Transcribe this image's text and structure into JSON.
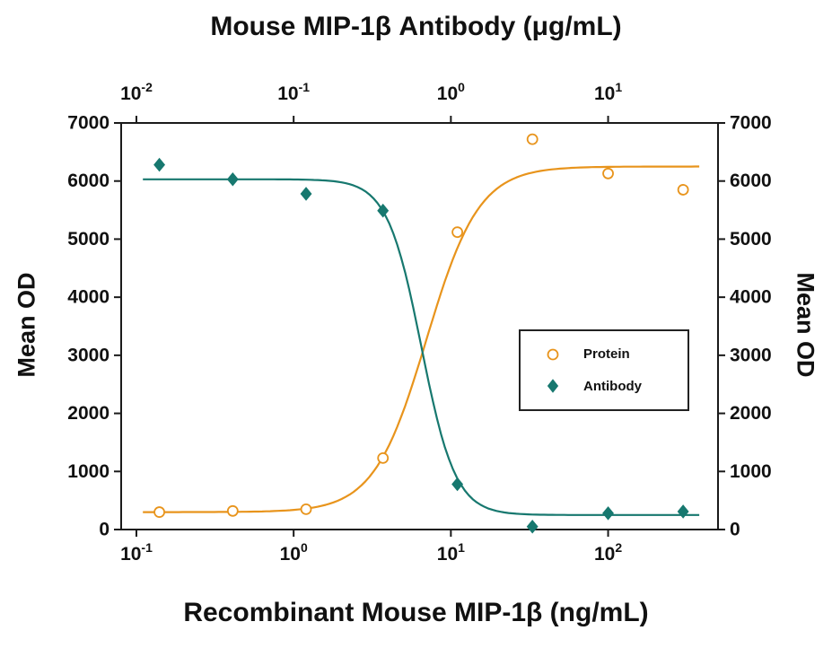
{
  "chart_data": {
    "type": "scatter",
    "title": "Mouse MIP-1β Antibody (μg/mL)",
    "x_axis_top": {
      "label": "Mouse MIP-1β Antibody (μg/mL)",
      "unit": "μg/mL",
      "scale": "log",
      "min": 0.008,
      "max": 50,
      "ticks": [
        {
          "base": "10",
          "exp": "-2",
          "value": 0.01
        },
        {
          "base": "10",
          "exp": "-1",
          "value": 0.1
        },
        {
          "base": "10",
          "exp": "0",
          "value": 1
        },
        {
          "base": "10",
          "exp": "1",
          "value": 10
        }
      ]
    },
    "x_axis_bottom": {
      "label": "Recombinant Mouse MIP-1β (ng/mL)",
      "unit": "ng/mL",
      "scale": "log",
      "min": 0.08,
      "max": 500,
      "ticks": [
        {
          "base": "10",
          "exp": "-1",
          "value": 0.1
        },
        {
          "base": "10",
          "exp": "0",
          "value": 1
        },
        {
          "base": "10",
          "exp": "1",
          "value": 10
        },
        {
          "base": "10",
          "exp": "2",
          "value": 100
        }
      ]
    },
    "y_axis": {
      "label": "Mean OD",
      "min": 0,
      "max": 7000,
      "ticks": [
        0,
        1000,
        2000,
        3000,
        4000,
        5000,
        6000,
        7000
      ]
    },
    "series": [
      {
        "name": "Protein",
        "axis": "bottom",
        "marker": "circle-open",
        "color": "#E8941C",
        "x": [
          0.14,
          0.41,
          1.2,
          3.7,
          11,
          33,
          100,
          300
        ],
        "y": [
          300,
          320,
          350,
          1230,
          5120,
          6720,
          6130,
          5850
        ],
        "fit": {
          "direction": "up",
          "low": 300,
          "high": 6250,
          "ec50": 7.0,
          "hill": 2.6,
          "curve_min": 0.11,
          "curve_max": 380
        }
      },
      {
        "name": "Antibody",
        "axis": "top",
        "marker": "diamond-filled",
        "color": "#17786F",
        "x": [
          0.014,
          0.041,
          0.12,
          0.37,
          1.1,
          3.3,
          10,
          30
        ],
        "y": [
          6280,
          6030,
          5780,
          5490,
          780,
          50,
          280,
          310
        ],
        "fit": {
          "direction": "down",
          "low": 250,
          "high": 6030,
          "ec50": 0.65,
          "hill": 4.0,
          "curve_min": 0.011,
          "curve_max": 38
        }
      }
    ],
    "legend": {
      "entries": [
        "Protein",
        "Antibody"
      ]
    }
  }
}
